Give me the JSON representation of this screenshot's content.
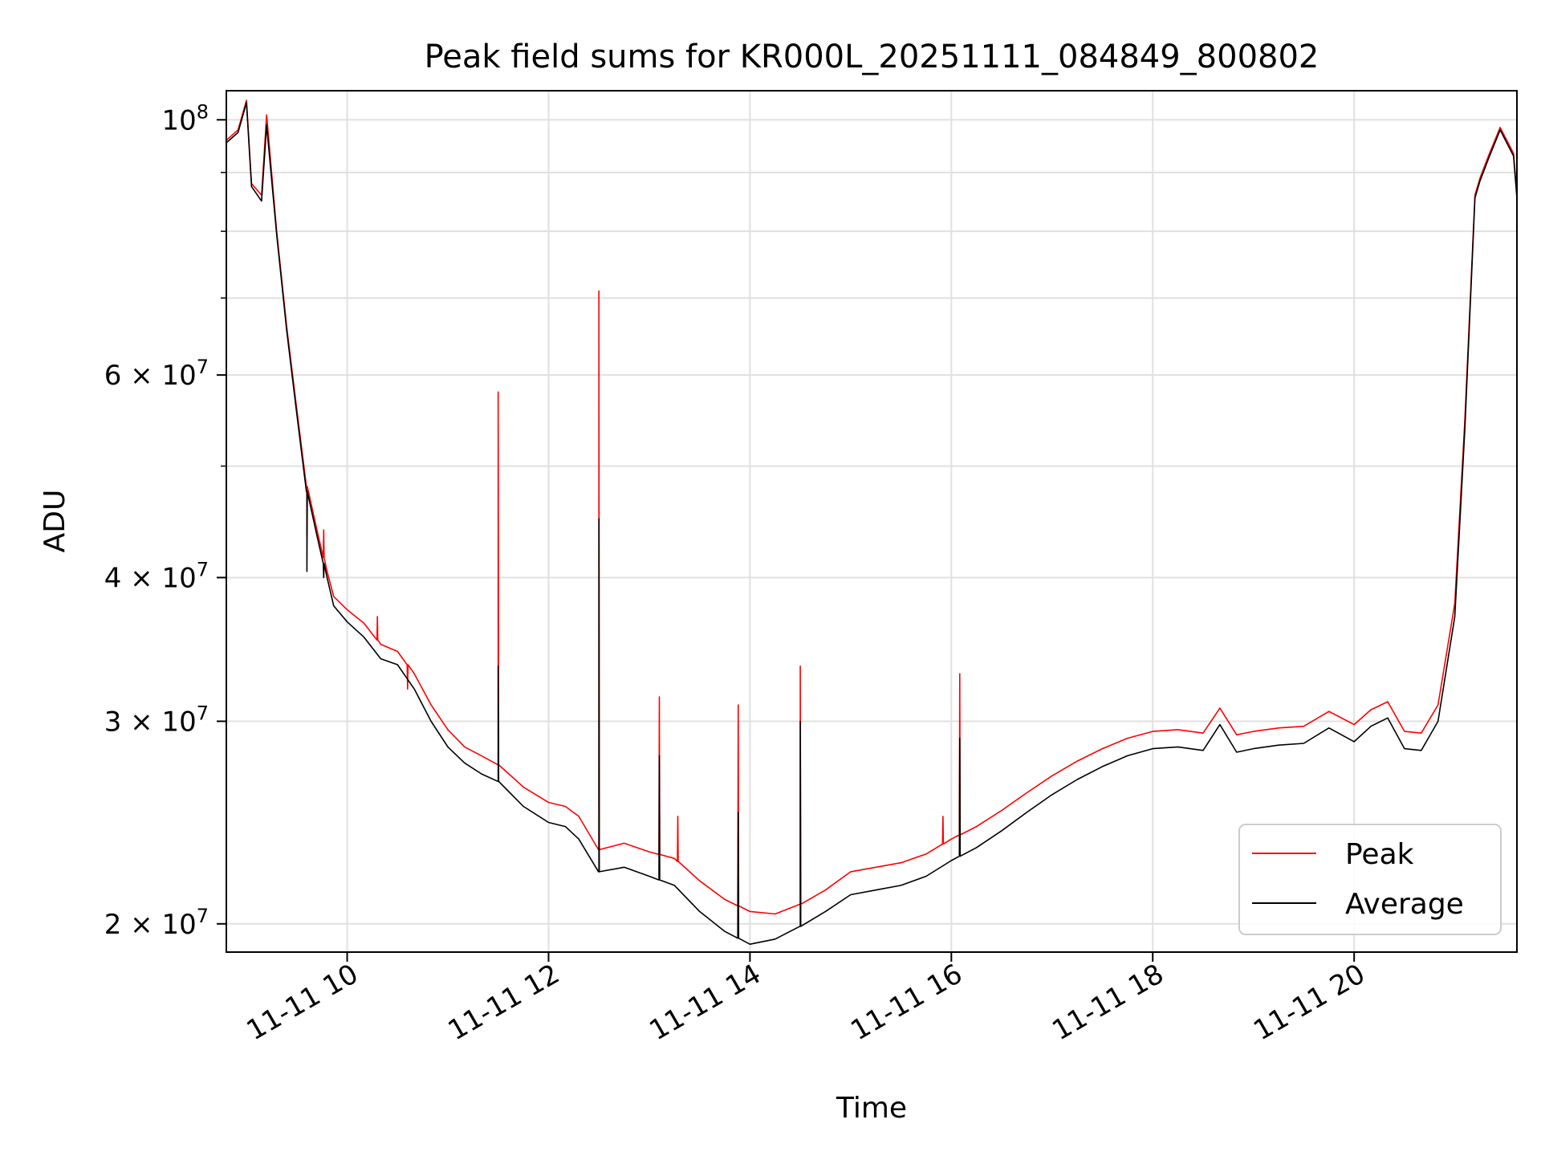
{
  "chart_data": {
    "type": "line",
    "title": "Peak field sums for KR000L_20251111_084849_800802",
    "xlabel": "Time",
    "ylabel": "ADU",
    "yscale": "log",
    "xlim": [
      "2025-11-11T08:48",
      "2025-11-11T21:37"
    ],
    "ylim": [
      18900000,
      106000000
    ],
    "grid": true,
    "legend_position": "lower right",
    "x_ticks": [
      {
        "value": "2025-11-11T10:00",
        "label": "11-11 10"
      },
      {
        "value": "2025-11-11T12:00",
        "label": "11-11 12"
      },
      {
        "value": "2025-11-11T14:00",
        "label": "11-11 14"
      },
      {
        "value": "2025-11-11T16:00",
        "label": "11-11 16"
      },
      {
        "value": "2025-11-11T18:00",
        "label": "11-11 18"
      },
      {
        "value": "2025-11-11T20:00",
        "label": "11-11 20"
      }
    ],
    "y_ticks": [
      {
        "value": 20000000,
        "mantissa": "2",
        "exponent": "7"
      },
      {
        "value": 30000000,
        "mantissa": "3",
        "exponent": "7"
      },
      {
        "value": 40000000,
        "mantissa": "4",
        "exponent": "7"
      },
      {
        "value": 60000000,
        "mantissa": "6",
        "exponent": "7"
      },
      {
        "value": 100000000,
        "mantissa": "",
        "exponent": "8"
      }
    ],
    "y_minor_ticks": [
      50000000,
      70000000,
      80000000,
      90000000
    ],
    "series": [
      {
        "name": "Peak",
        "color": "#ff0000",
        "points": [
          [
            "2025-11-11T08:48",
            96000000
          ],
          [
            "2025-11-11T08:55",
            98000000
          ],
          [
            "2025-11-11T09:00",
            104000000
          ],
          [
            "2025-11-11T09:03",
            88000000
          ],
          [
            "2025-11-11T09:09",
            86000000
          ],
          [
            "2025-11-11T09:12",
            101000000
          ],
          [
            "2025-11-11T09:18",
            80000000
          ],
          [
            "2025-11-11T09:24",
            66000000
          ],
          [
            "2025-11-11T09:30",
            56000000
          ],
          [
            "2025-11-11T09:36",
            48000000
          ],
          [
            "2025-11-11T09:42",
            44000000
          ],
          [
            "2025-11-11T09:48",
            40500000
          ],
          [
            "2025-11-11T09:52",
            38500000
          ],
          [
            "2025-11-11T10:00",
            37500000
          ],
          [
            "2025-11-11T10:10",
            36500000
          ],
          [
            "2025-11-11T10:20",
            35000000
          ],
          [
            "2025-11-11T10:30",
            34500000
          ],
          [
            "2025-11-11T10:40",
            33000000
          ],
          [
            "2025-11-11T10:50",
            31000000
          ],
          [
            "2025-11-11T11:00",
            29500000
          ],
          [
            "2025-11-11T11:10",
            28500000
          ],
          [
            "2025-11-11T11:20",
            28000000
          ],
          [
            "2025-11-11T11:30",
            27500000
          ],
          [
            "2025-11-11T11:45",
            26300000
          ],
          [
            "2025-11-11T12:00",
            25500000
          ],
          [
            "2025-11-11T12:10",
            25300000
          ],
          [
            "2025-11-11T12:18",
            24800000
          ],
          [
            "2025-11-11T12:30",
            23200000
          ],
          [
            "2025-11-11T12:45",
            23500000
          ],
          [
            "2025-11-11T13:00",
            23100000
          ],
          [
            "2025-11-11T13:15",
            22800000
          ],
          [
            "2025-11-11T13:30",
            21800000
          ],
          [
            "2025-11-11T13:45",
            21000000
          ],
          [
            "2025-11-11T14:00",
            20500000
          ],
          [
            "2025-11-11T14:15",
            20400000
          ],
          [
            "2025-11-11T14:30",
            20800000
          ],
          [
            "2025-11-11T14:45",
            21400000
          ],
          [
            "2025-11-11T15:00",
            22200000
          ],
          [
            "2025-11-11T15:15",
            22400000
          ],
          [
            "2025-11-11T15:30",
            22600000
          ],
          [
            "2025-11-11T15:45",
            23000000
          ],
          [
            "2025-11-11T16:00",
            23700000
          ],
          [
            "2025-11-11T16:15",
            24300000
          ],
          [
            "2025-11-11T16:30",
            25100000
          ],
          [
            "2025-11-11T16:45",
            26000000
          ],
          [
            "2025-11-11T17:00",
            26900000
          ],
          [
            "2025-11-11T17:15",
            27700000
          ],
          [
            "2025-11-11T17:30",
            28400000
          ],
          [
            "2025-11-11T17:45",
            29000000
          ],
          [
            "2025-11-11T18:00",
            29400000
          ],
          [
            "2025-11-11T18:15",
            29500000
          ],
          [
            "2025-11-11T18:30",
            29300000
          ],
          [
            "2025-11-11T18:40",
            30800000
          ],
          [
            "2025-11-11T18:50",
            29200000
          ],
          [
            "2025-11-11T19:00",
            29400000
          ],
          [
            "2025-11-11T19:15",
            29600000
          ],
          [
            "2025-11-11T19:30",
            29700000
          ],
          [
            "2025-11-11T19:45",
            30600000
          ],
          [
            "2025-11-11T20:00",
            29800000
          ],
          [
            "2025-11-11T20:10",
            30700000
          ],
          [
            "2025-11-11T20:20",
            31200000
          ],
          [
            "2025-11-11T20:30",
            29400000
          ],
          [
            "2025-11-11T20:40",
            29300000
          ],
          [
            "2025-11-11T20:50",
            31000000
          ],
          [
            "2025-11-11T21:00",
            38000000
          ],
          [
            "2025-11-11T21:06",
            55000000
          ],
          [
            "2025-11-11T21:12",
            86000000
          ],
          [
            "2025-11-11T21:15",
            89000000
          ],
          [
            "2025-11-11T21:20",
            93000000
          ],
          [
            "2025-11-11T21:27",
            98500000
          ],
          [
            "2025-11-11T21:35",
            93500000
          ],
          [
            "2025-11-11T21:37",
            86000000
          ]
        ],
        "spikes": [
          [
            "2025-11-11T09:36",
            43500000
          ],
          [
            "2025-11-11T09:46",
            44000000
          ],
          [
            "2025-11-11T10:18",
            37000000
          ],
          [
            "2025-11-11T10:36",
            32000000
          ],
          [
            "2025-11-11T11:30",
            58000000
          ],
          [
            "2025-11-11T12:30",
            71000000
          ],
          [
            "2025-11-11T13:06",
            31500000
          ],
          [
            "2025-11-11T13:17",
            24800000
          ],
          [
            "2025-11-11T13:53",
            31000000
          ],
          [
            "2025-11-11T14:30",
            33500000
          ],
          [
            "2025-11-11T15:55",
            24800000
          ],
          [
            "2025-11-11T16:05",
            33000000
          ]
        ]
      },
      {
        "name": "Average",
        "color": "#000000",
        "points": [
          [
            "2025-11-11T08:48",
            95500000
          ],
          [
            "2025-11-11T08:55",
            97500000
          ],
          [
            "2025-11-11T09:00",
            103500000
          ],
          [
            "2025-11-11T09:03",
            87500000
          ],
          [
            "2025-11-11T09:09",
            85000000
          ],
          [
            "2025-11-11T09:12",
            99000000
          ],
          [
            "2025-11-11T09:18",
            79500000
          ],
          [
            "2025-11-11T09:24",
            65500000
          ],
          [
            "2025-11-11T09:30",
            55500000
          ],
          [
            "2025-11-11T09:36",
            47500000
          ],
          [
            "2025-11-11T09:42",
            43500000
          ],
          [
            "2025-11-11T09:48",
            40000000
          ],
          [
            "2025-11-11T09:52",
            37800000
          ],
          [
            "2025-11-11T10:00",
            36600000
          ],
          [
            "2025-11-11T10:10",
            35500000
          ],
          [
            "2025-11-11T10:20",
            34000000
          ],
          [
            "2025-11-11T10:30",
            33600000
          ],
          [
            "2025-11-11T10:40",
            32000000
          ],
          [
            "2025-11-11T10:50",
            30000000
          ],
          [
            "2025-11-11T11:00",
            28500000
          ],
          [
            "2025-11-11T11:10",
            27600000
          ],
          [
            "2025-11-11T11:20",
            27000000
          ],
          [
            "2025-11-11T11:30",
            26600000
          ],
          [
            "2025-11-11T11:45",
            25300000
          ],
          [
            "2025-11-11T12:00",
            24500000
          ],
          [
            "2025-11-11T12:10",
            24300000
          ],
          [
            "2025-11-11T12:18",
            23700000
          ],
          [
            "2025-11-11T12:30",
            22200000
          ],
          [
            "2025-11-11T12:45",
            22400000
          ],
          [
            "2025-11-11T13:00",
            22000000
          ],
          [
            "2025-11-11T13:15",
            21600000
          ],
          [
            "2025-11-11T13:30",
            20500000
          ],
          [
            "2025-11-11T13:45",
            19700000
          ],
          [
            "2025-11-11T14:00",
            19200000
          ],
          [
            "2025-11-11T14:15",
            19400000
          ],
          [
            "2025-11-11T14:30",
            19900000
          ],
          [
            "2025-11-11T14:45",
            20500000
          ],
          [
            "2025-11-11T15:00",
            21200000
          ],
          [
            "2025-11-11T15:15",
            21400000
          ],
          [
            "2025-11-11T15:30",
            21600000
          ],
          [
            "2025-11-11T15:45",
            22000000
          ],
          [
            "2025-11-11T16:00",
            22700000
          ],
          [
            "2025-11-11T16:15",
            23300000
          ],
          [
            "2025-11-11T16:30",
            24100000
          ],
          [
            "2025-11-11T16:45",
            25000000
          ],
          [
            "2025-11-11T17:00",
            25900000
          ],
          [
            "2025-11-11T17:15",
            26700000
          ],
          [
            "2025-11-11T17:30",
            27400000
          ],
          [
            "2025-11-11T17:45",
            28000000
          ],
          [
            "2025-11-11T18:00",
            28400000
          ],
          [
            "2025-11-11T18:15",
            28500000
          ],
          [
            "2025-11-11T18:30",
            28300000
          ],
          [
            "2025-11-11T18:40",
            29800000
          ],
          [
            "2025-11-11T18:50",
            28200000
          ],
          [
            "2025-11-11T19:00",
            28400000
          ],
          [
            "2025-11-11T19:15",
            28600000
          ],
          [
            "2025-11-11T19:30",
            28700000
          ],
          [
            "2025-11-11T19:45",
            29600000
          ],
          [
            "2025-11-11T20:00",
            28800000
          ],
          [
            "2025-11-11T20:10",
            29700000
          ],
          [
            "2025-11-11T20:20",
            30200000
          ],
          [
            "2025-11-11T20:30",
            28400000
          ],
          [
            "2025-11-11T20:40",
            28300000
          ],
          [
            "2025-11-11T20:50",
            30000000
          ],
          [
            "2025-11-11T21:00",
            37000000
          ],
          [
            "2025-11-11T21:06",
            54000000
          ],
          [
            "2025-11-11T21:12",
            85500000
          ],
          [
            "2025-11-11T21:15",
            88500000
          ],
          [
            "2025-11-11T21:20",
            92500000
          ],
          [
            "2025-11-11T21:27",
            98000000
          ],
          [
            "2025-11-11T21:35",
            93000000
          ],
          [
            "2025-11-11T21:37",
            85500000
          ]
        ],
        "spikes": [
          [
            "2025-11-11T09:36",
            40500000
          ],
          [
            "2025-11-11T09:46",
            40000000
          ],
          [
            "2025-11-11T11:30",
            33500000
          ],
          [
            "2025-11-11T12:30",
            45000000
          ],
          [
            "2025-11-11T13:06",
            28000000
          ],
          [
            "2025-11-11T13:53",
            25000000
          ],
          [
            "2025-11-11T14:30",
            30000000
          ],
          [
            "2025-11-11T16:05",
            29000000
          ]
        ]
      }
    ]
  }
}
